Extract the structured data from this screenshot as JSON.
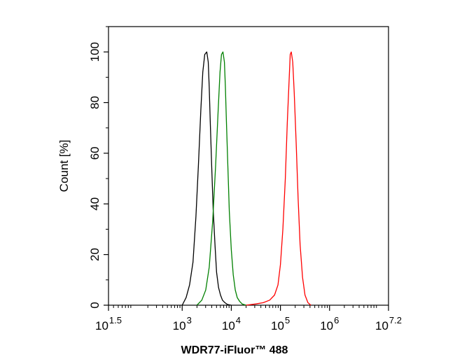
{
  "chart_data": {
    "type": "line",
    "xlabel": "WDR77-iFluor™ 488",
    "ylabel": "Count [%]",
    "x_scale": "log10",
    "xlim_log10": [
      1.5,
      7.2
    ],
    "ylim": [
      0,
      110
    ],
    "x_ticks": [
      {
        "base": "10",
        "exp": "1.5",
        "log10": 1.5
      },
      {
        "base": "10",
        "exp": "3",
        "log10": 3
      },
      {
        "base": "10",
        "exp": "4",
        "log10": 4
      },
      {
        "base": "10",
        "exp": "5",
        "log10": 5
      },
      {
        "base": "10",
        "exp": "6",
        "log10": 6
      },
      {
        "base": "10",
        "exp": "7.2",
        "log10": 7.2
      }
    ],
    "y_ticks": [
      0,
      20,
      40,
      60,
      80,
      100
    ],
    "grid": false,
    "series": [
      {
        "color": "#000000",
        "x_log10": [
          3.0,
          3.08,
          3.15,
          3.22,
          3.28,
          3.33,
          3.38,
          3.42,
          3.46,
          3.5,
          3.53,
          3.55,
          3.57,
          3.6,
          3.63,
          3.67,
          3.7,
          3.74,
          3.78,
          3.82,
          3.87,
          3.92,
          4.0
        ],
        "y": [
          0,
          3,
          8,
          17,
          35,
          55,
          77,
          92,
          99,
          100,
          96,
          86,
          73,
          55,
          38,
          23,
          13,
          7,
          4,
          2,
          1,
          0.3,
          0
        ]
      },
      {
        "color": "#008000",
        "x_log10": [
          3.3,
          3.4,
          3.48,
          3.55,
          3.62,
          3.68,
          3.73,
          3.77,
          3.8,
          3.83,
          3.86,
          3.88,
          3.9,
          3.93,
          3.96,
          4.0,
          4.04,
          4.08,
          4.12,
          4.17,
          4.22,
          4.3
        ],
        "y": [
          0,
          2,
          6,
          15,
          33,
          55,
          76,
          92,
          99,
          100,
          96,
          86,
          73,
          55,
          37,
          22,
          12,
          6,
          3,
          1.5,
          0.5,
          0
        ]
      },
      {
        "color": "#ff0000",
        "x_log10": [
          4.3,
          4.5,
          4.65,
          4.78,
          4.88,
          4.95,
          5.0,
          5.05,
          5.1,
          5.14,
          5.18,
          5.2,
          5.22,
          5.25,
          5.28,
          5.32,
          5.36,
          5.4,
          5.45,
          5.5,
          5.56,
          5.62
        ],
        "y": [
          0,
          0.5,
          1,
          2,
          4,
          8,
          16,
          30,
          50,
          72,
          90,
          99,
          100,
          96,
          84,
          64,
          42,
          24,
          11,
          4,
          1,
          0
        ]
      }
    ]
  }
}
